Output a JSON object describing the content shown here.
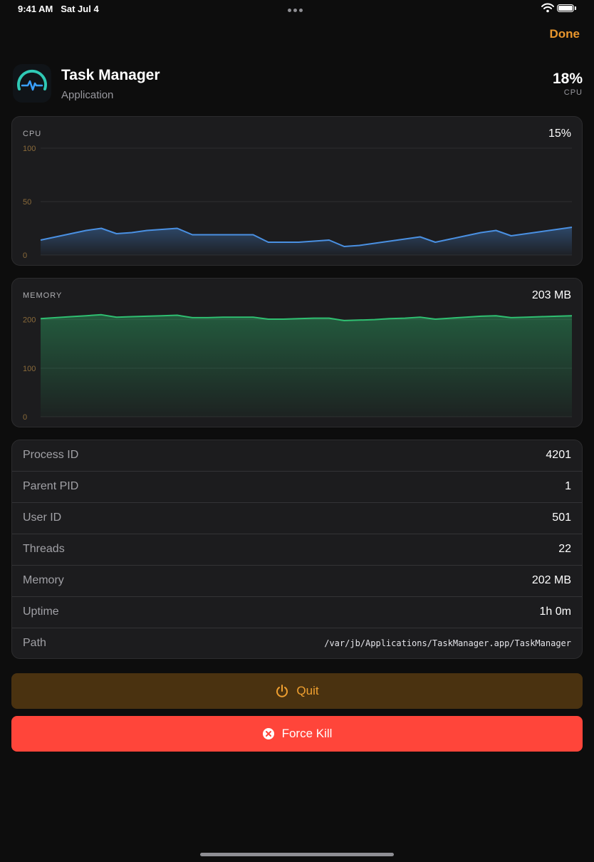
{
  "status_bar": {
    "time": "9:41 AM",
    "date": "Sat Jul 4"
  },
  "nav": {
    "done_label": "Done"
  },
  "app": {
    "name": "Task Manager",
    "kind": "Application",
    "cpu_value": "18%",
    "cpu_label": "CPU"
  },
  "colors": {
    "accent": "#e8962d",
    "cpu_line": "#4a90e2",
    "memory_line": "#2fbf71",
    "kill": "#ff453a",
    "quit_bg": "#4a3210",
    "axis_tick": "#8a6a3a"
  },
  "charts": {
    "cpu": {
      "title": "CPU",
      "value": "15%",
      "ticks": [
        "100",
        "50",
        "0"
      ]
    },
    "memory": {
      "title": "MEMORY",
      "value": "203 MB",
      "ticks": [
        "200",
        "100",
        "0"
      ]
    }
  },
  "chart_data": [
    {
      "type": "area",
      "title": "CPU",
      "ylim": [
        0,
        100
      ],
      "yticks": [
        0,
        50,
        100
      ],
      "grid": true,
      "x": [
        0,
        1,
        2,
        3,
        4,
        5,
        6,
        7,
        8,
        9,
        10,
        11,
        12,
        13,
        14,
        15,
        16,
        17,
        18,
        19,
        20,
        21,
        22,
        23,
        24,
        25,
        26,
        27,
        28,
        29,
        30,
        31,
        32,
        33,
        34,
        35
      ],
      "series": [
        {
          "values": [
            14,
            17,
            20,
            23,
            25,
            20,
            21,
            23,
            24,
            25,
            19,
            19,
            19,
            19,
            19,
            12,
            12,
            12,
            13,
            14,
            8,
            9,
            11,
            13,
            15,
            17,
            12,
            15,
            18,
            21,
            23,
            18,
            20,
            22,
            24,
            26
          ]
        }
      ]
    },
    {
      "type": "area",
      "title": "MEMORY",
      "ylim": [
        0,
        220
      ],
      "yticks": [
        0,
        100,
        200
      ],
      "grid": true,
      "x": [
        0,
        1,
        2,
        3,
        4,
        5,
        6,
        7,
        8,
        9,
        10,
        11,
        12,
        13,
        14,
        15,
        16,
        17,
        18,
        19,
        20,
        21,
        22,
        23,
        24,
        25,
        26,
        27,
        28,
        29,
        30,
        31,
        32,
        33,
        34,
        35
      ],
      "series": [
        {
          "values": [
            202,
            204,
            206,
            208,
            210,
            205,
            206,
            207,
            208,
            209,
            204,
            204,
            205,
            205,
            205,
            201,
            201,
            202,
            203,
            203,
            198,
            199,
            200,
            202,
            203,
            205,
            201,
            203,
            205,
            207,
            208,
            204,
            205,
            206,
            207,
            208
          ]
        }
      ]
    }
  ],
  "info": {
    "rows": [
      {
        "label": "Process ID",
        "value": "4201"
      },
      {
        "label": "Parent PID",
        "value": "1"
      },
      {
        "label": "User ID",
        "value": "501"
      },
      {
        "label": "Threads",
        "value": "22"
      },
      {
        "label": "Memory",
        "value": "202 MB"
      },
      {
        "label": "Uptime",
        "value": "1h 0m"
      },
      {
        "label": "Path",
        "value": "/var/jb/Applications/TaskManager.app/TaskManager"
      }
    ]
  },
  "actions": {
    "quit_label": "Quit",
    "force_kill_label": "Force Kill"
  },
  "icons": {
    "app": "pulse-gauge-icon",
    "quit": "power-icon",
    "kill": "xmark-circle-icon",
    "wifi": "wifi-icon",
    "battery": "battery-icon"
  }
}
